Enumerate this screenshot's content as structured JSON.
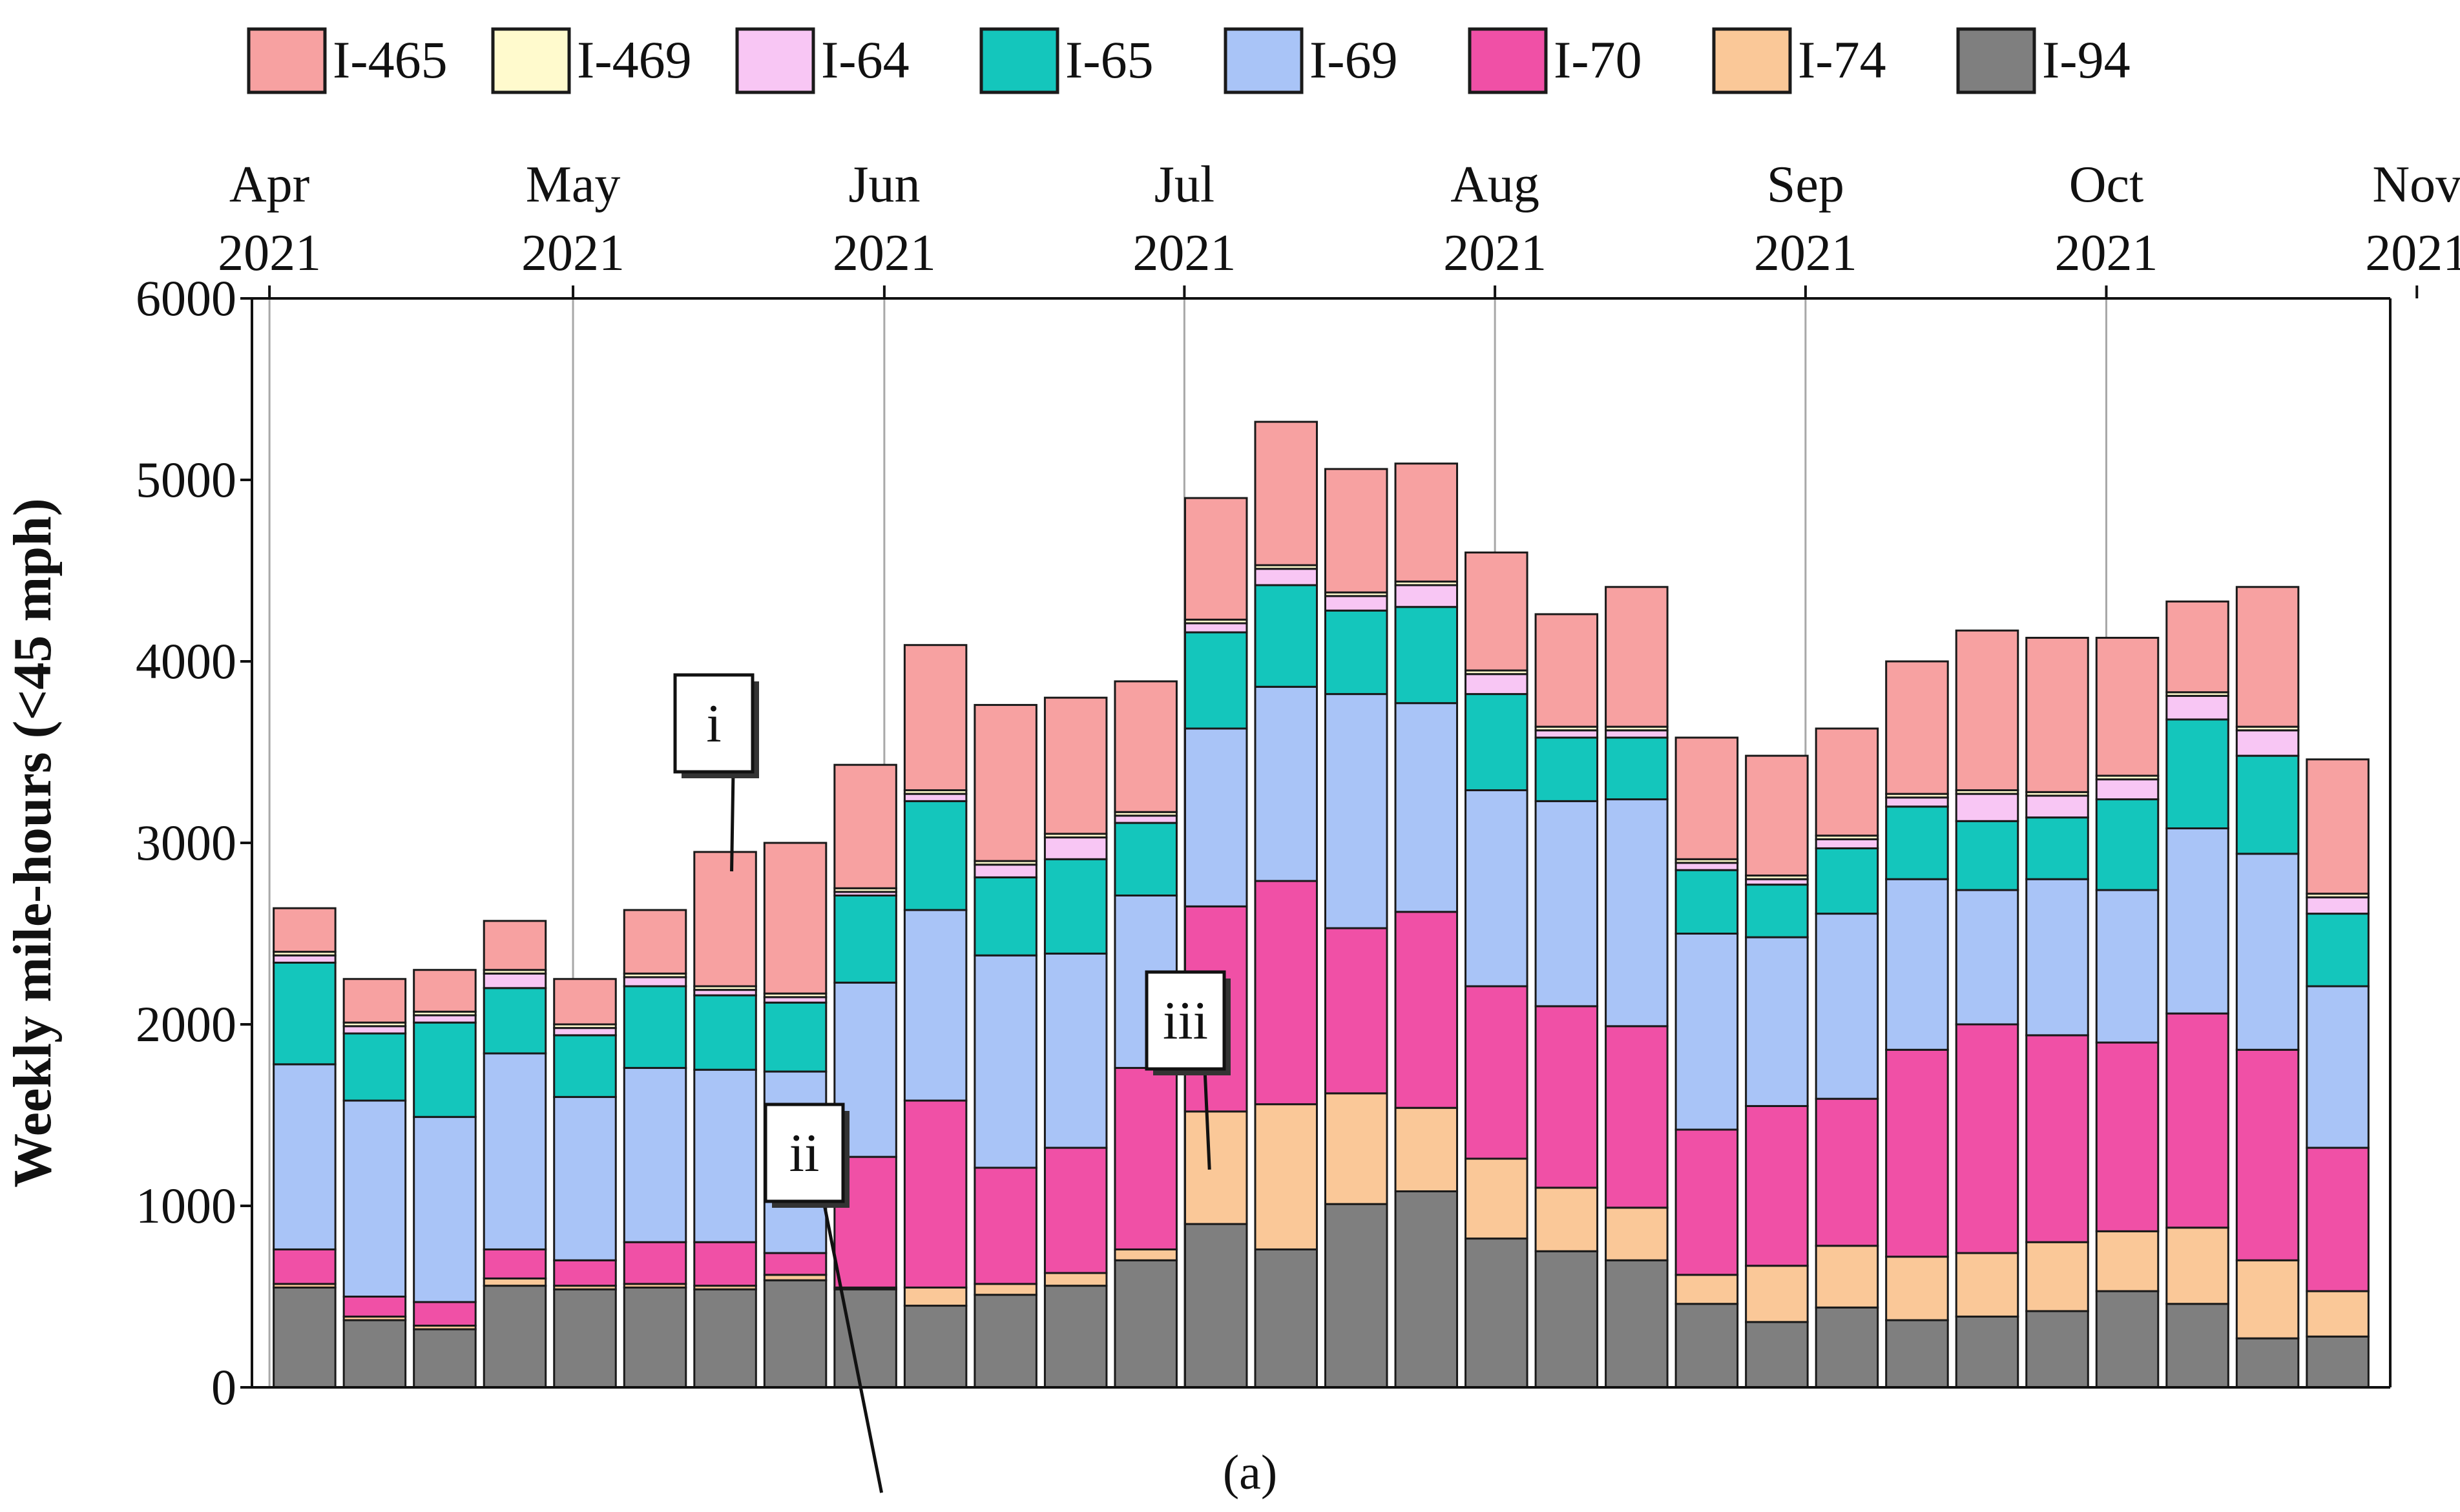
{
  "chart_data": {
    "type": "bar",
    "stacked": true,
    "caption": "(a)",
    "ylabel": "Weekly mile-hours (<45 mph)",
    "ylim": [
      0,
      6000
    ],
    "yticks": [
      0,
      1000,
      2000,
      3000,
      4000,
      5000,
      6000
    ],
    "legend_position": "top",
    "top_axis_months": [
      {
        "month": "Apr",
        "year": "2021",
        "week_pos": -0.5
      },
      {
        "month": "May",
        "year": "2021",
        "week_pos": 3.83
      },
      {
        "month": "Jun",
        "year": "2021",
        "week_pos": 8.27
      },
      {
        "month": "Jul",
        "year": "2021",
        "week_pos": 12.55
      },
      {
        "month": "Aug",
        "year": "2021",
        "week_pos": 16.98
      },
      {
        "month": "Sep",
        "year": "2021",
        "week_pos": 21.41
      },
      {
        "month": "Oct",
        "year": "2021",
        "week_pos": 25.7
      },
      {
        "month": "Nov",
        "year": "2021",
        "week_pos": 30.13
      }
    ],
    "series": [
      {
        "name": "I-94",
        "color": "#7f7f7f",
        "values": [
          550,
          370,
          320,
          560,
          540,
          550,
          540,
          590,
          540,
          450,
          510,
          560,
          700,
          900,
          760,
          1010,
          1080,
          820,
          750,
          700,
          460,
          360,
          440,
          370,
          390,
          420,
          530,
          460,
          270,
          280
        ]
      },
      {
        "name": "I-74",
        "color": "#fac898",
        "values": [
          20,
          20,
          20,
          40,
          20,
          20,
          20,
          30,
          10,
          100,
          60,
          70,
          60,
          620,
          800,
          610,
          460,
          440,
          350,
          290,
          160,
          310,
          340,
          350,
          350,
          380,
          330,
          420,
          430,
          250
        ]
      },
      {
        "name": "I-70",
        "color": "#f050a6",
        "values": [
          190,
          110,
          130,
          160,
          140,
          230,
          240,
          120,
          720,
          1030,
          640,
          690,
          1000,
          1130,
          1230,
          910,
          1080,
          950,
          1000,
          1000,
          800,
          880,
          810,
          1140,
          1260,
          1140,
          1040,
          1180,
          1160,
          790
        ]
      },
      {
        "name": "I-69",
        "color": "#a9c4f7",
        "values": [
          1020,
          1080,
          1020,
          1080,
          900,
          960,
          950,
          1000,
          960,
          1050,
          1170,
          1070,
          950,
          980,
          1070,
          1290,
          1150,
          1080,
          1130,
          1250,
          1080,
          930,
          1020,
          940,
          740,
          860,
          840,
          1020,
          1080,
          890
        ]
      },
      {
        "name": "I-65",
        "color": "#14c6bc",
        "values": [
          560,
          370,
          520,
          360,
          340,
          450,
          410,
          380,
          480,
          600,
          430,
          520,
          400,
          530,
          560,
          460,
          530,
          530,
          350,
          340,
          350,
          290,
          360,
          400,
          380,
          340,
          500,
          600,
          540,
          400
        ]
      },
      {
        "name": "I-64",
        "color": "#f8c6f4",
        "values": [
          40,
          40,
          40,
          80,
          40,
          50,
          30,
          30,
          20,
          40,
          70,
          120,
          40,
          50,
          90,
          80,
          120,
          110,
          40,
          40,
          40,
          30,
          50,
          50,
          150,
          120,
          110,
          130,
          140,
          90
        ]
      },
      {
        "name": "I-469",
        "color": "#fffacd",
        "values": [
          20,
          20,
          20,
          20,
          20,
          20,
          20,
          20,
          20,
          20,
          20,
          20,
          20,
          20,
          20,
          20,
          20,
          20,
          20,
          20,
          20,
          20,
          20,
          20,
          20,
          20,
          20,
          20,
          20,
          20
        ]
      },
      {
        "name": "I-465",
        "color": "#f7a1a1",
        "values": [
          240,
          240,
          230,
          270,
          250,
          350,
          740,
          830,
          680,
          800,
          860,
          750,
          720,
          670,
          790,
          680,
          650,
          650,
          620,
          770,
          670,
          660,
          590,
          730,
          880,
          850,
          760,
          500,
          770,
          740
        ]
      }
    ],
    "annotations": [
      {
        "label": "i",
        "week": 6
      },
      {
        "label": "ii",
        "week": 8
      },
      {
        "label": "iii",
        "week": 13
      }
    ]
  }
}
